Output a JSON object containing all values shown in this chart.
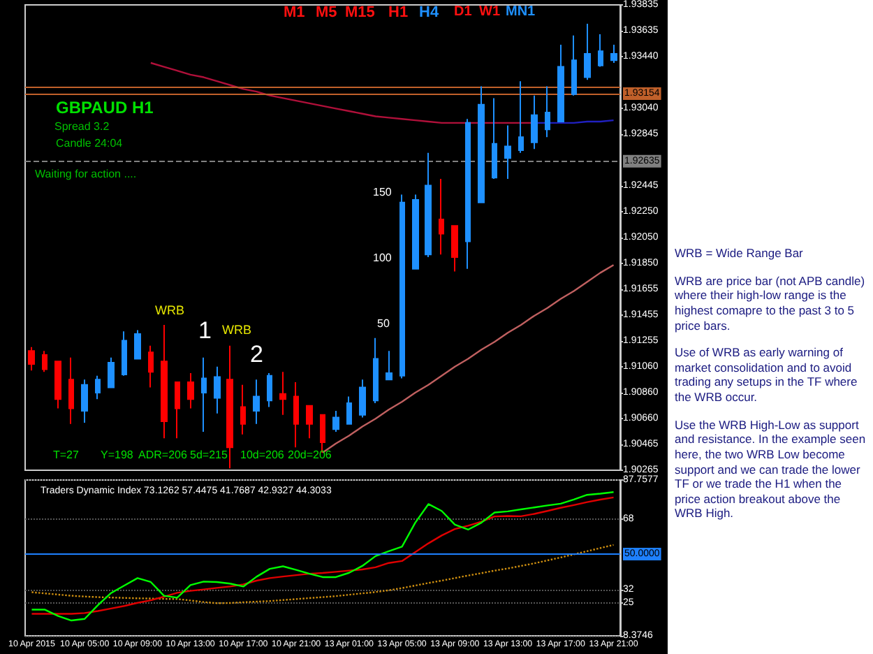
{
  "chart_data": [
    {
      "type": "candlestick",
      "categories": [
        null,
        null,
        null,
        null,
        null,
        null,
        null,
        null,
        null,
        null,
        null,
        null,
        null,
        null,
        null,
        null,
        null,
        null,
        null,
        null,
        null,
        null,
        null,
        null,
        null,
        null,
        null,
        null,
        null,
        null,
        null,
        null,
        null,
        null,
        null,
        null,
        null,
        null,
        null,
        null,
        null,
        null,
        null,
        null,
        null
      ],
      "ohlc": [
        [
          1.9118,
          1.9121,
          1.9103,
          1.9108
        ],
        [
          1.9115,
          1.9118,
          1.9102,
          1.9104
        ],
        [
          1.911,
          1.911,
          1.9074,
          1.9081
        ],
        [
          1.9096,
          1.9113,
          1.9062,
          1.9074
        ],
        [
          1.9072,
          1.9096,
          1.9063,
          1.9092
        ],
        [
          1.9086,
          1.9099,
          1.9081,
          1.9096
        ],
        [
          1.909,
          1.9113,
          1.909,
          1.9109
        ],
        [
          1.91,
          1.9133,
          1.9099,
          1.9126
        ],
        [
          1.9112,
          1.9134,
          1.9112,
          1.9131
        ],
        [
          1.9117,
          1.9122,
          1.909,
          1.9102
        ],
        [
          1.911,
          1.9138,
          1.9051,
          1.9064
        ],
        [
          1.9094,
          1.9094,
          1.9051,
          1.9074
        ],
        [
          1.9094,
          1.9101,
          1.9074,
          1.9081
        ],
        [
          1.9086,
          1.9113,
          1.9056,
          1.9097
        ],
        [
          1.9082,
          1.9106,
          1.907,
          1.9098
        ],
        [
          1.9096,
          1.9122,
          1.9028,
          1.9044
        ],
        [
          1.9075,
          1.9092,
          1.9054,
          1.9062
        ],
        [
          1.9072,
          1.9096,
          1.9062,
          1.9083
        ],
        [
          1.908,
          1.9101,
          1.9075,
          1.9099
        ],
        [
          1.9085,
          1.9102,
          1.9069,
          1.9081
        ],
        [
          1.9083,
          1.9094,
          1.9044,
          1.9062
        ],
        [
          1.9076,
          1.9076,
          1.9051,
          1.9062
        ],
        [
          1.9069,
          1.9069,
          1.904,
          1.9048
        ],
        [
          1.9058,
          1.9072,
          1.9056,
          1.9067
        ],
        [
          1.9062,
          1.9083,
          1.9062,
          1.9078
        ],
        [
          1.9069,
          1.9096,
          1.9067,
          1.909
        ],
        [
          1.908,
          1.9128,
          1.9078,
          1.9112
        ],
        [
          1.9096,
          1.9118,
          1.9096,
          1.9101
        ],
        [
          1.9099,
          1.9238,
          1.9097,
          1.9232
        ],
        [
          1.9181,
          1.9238,
          1.9181,
          1.9234
        ],
        [
          1.9192,
          1.927,
          1.919,
          1.9245
        ],
        [
          1.9219,
          1.925,
          1.9192,
          1.9208
        ],
        [
          1.9214,
          1.9214,
          1.9179,
          1.919
        ],
        [
          1.9202,
          1.9296,
          1.9181,
          1.9293
        ],
        [
          1.9232,
          1.9321,
          1.9232,
          1.9307
        ],
        [
          1.9251,
          1.9312,
          1.925,
          1.9277
        ],
        [
          1.9266,
          1.9291,
          1.925,
          1.9275
        ],
        [
          1.9272,
          1.9325,
          1.927,
          1.9282
        ],
        [
          1.9278,
          1.9314,
          1.9273,
          1.9299
        ],
        [
          1.9288,
          1.9321,
          1.9282,
          1.9301
        ],
        [
          1.9294,
          1.9353,
          1.9294,
          1.9336
        ],
        [
          1.9315,
          1.936,
          1.9314,
          1.9341
        ],
        [
          1.9328,
          1.9369,
          1.9326,
          1.9346
        ],
        [
          1.9337,
          1.9361,
          1.9336,
          1.9348
        ],
        [
          1.9341,
          1.9353,
          1.9339,
          1.9346
        ]
      ],
      "colors": [
        "#ff0000",
        "#ff0000",
        "#ff0000",
        "#ff0000",
        "#1e90ff",
        "#1e90ff",
        "#1e90ff",
        "#1e90ff",
        "#1e90ff",
        "#ff0000",
        "#ff0000",
        "#ff0000",
        "#ff0000",
        "#1e90ff",
        "#1e90ff",
        "#ff0000",
        "#ff0000",
        "#1e90ff",
        "#1e90ff",
        "#ff0000",
        "#ff0000",
        "#ff0000",
        "#ff0000",
        "#1e90ff",
        "#1e90ff",
        "#1e90ff",
        "#1e90ff",
        "#1e90ff",
        "#1e90ff",
        "#1e90ff",
        "#1e90ff",
        "#ff0000",
        "#ff0000",
        "#1e90ff",
        "#1e90ff",
        "#1e90ff",
        "#1e90ff",
        "#1e90ff",
        "#1e90ff",
        "#1e90ff",
        "#1e90ff",
        "#1e90ff",
        "#1e90ff",
        "#1e90ff",
        "#1e90ff"
      ],
      "series": [
        {
          "type": "line",
          "color": "#b0103a",
          "values": [
            null,
            null,
            null,
            null,
            null,
            null,
            null,
            null,
            null,
            1.9339,
            1.9336,
            1.9333,
            1.933,
            1.9328,
            1.9325,
            1.9322,
            1.9319,
            1.9317,
            1.9314,
            1.9312,
            1.931,
            1.9308,
            1.9306,
            1.9304,
            1.9302,
            1.93,
            1.9298,
            1.9297,
            1.9296,
            1.9295,
            1.9294,
            1.9293,
            1.9293,
            1.9293,
            1.9293,
            1.9293,
            1.9293,
            1.9293,
            1.9293,
            null,
            null,
            null,
            null,
            null,
            null
          ]
        },
        {
          "type": "line",
          "color": "#2020c0",
          "values": [
            null,
            null,
            null,
            null,
            null,
            null,
            null,
            null,
            null,
            null,
            null,
            null,
            null,
            null,
            null,
            null,
            null,
            null,
            null,
            null,
            null,
            null,
            null,
            null,
            null,
            null,
            null,
            null,
            null,
            null,
            null,
            null,
            null,
            null,
            null,
            null,
            null,
            null,
            1.9293,
            1.9293,
            1.9293,
            1.9293,
            1.9294,
            1.9294,
            1.9295
          ]
        },
        {
          "type": "line",
          "color": "#c06060",
          "values": [
            null,
            null,
            null,
            null,
            null,
            null,
            null,
            null,
            null,
            null,
            null,
            null,
            null,
            null,
            null,
            null,
            null,
            null,
            null,
            null,
            null,
            null,
            1.904,
            1.9047,
            1.9053,
            1.906,
            1.9066,
            1.9073,
            1.9079,
            1.9086,
            1.9092,
            1.9099,
            1.9106,
            1.9112,
            1.9119,
            1.9125,
            1.9132,
            1.9138,
            1.9145,
            1.9151,
            1.9158,
            1.9164,
            1.9171,
            1.9178,
            1.9184
          ]
        }
      ],
      "ylim": [
        1.90265,
        1.93835
      ],
      "yticks": [
        1.93835,
        1.93635,
        {
          "value": 1.9344,
          "label": "1.93440"
        },
        {
          "value": 1.9304,
          "label": "1.93040"
        },
        1.92845,
        1.92445,
        {
          "value": 1.9225,
          "label": "1.92250"
        },
        {
          "value": 1.9205,
          "label": "1.92050"
        },
        {
          "value": 1.9185,
          "label": "1.91850"
        },
        1.91655,
        1.91455,
        1.91255,
        {
          "value": 1.9106,
          "label": "1.91060"
        },
        {
          "value": 1.9086,
          "label": "1.90860"
        },
        {
          "value": 1.9066,
          "label": "1.90660"
        },
        1.90465,
        1.90265
      ],
      "ref_lines": [
        {
          "axis": "y",
          "value": 1.9321,
          "color": "#c0602a"
        },
        {
          "axis": "y",
          "value": 1.93154,
          "label": "1.93154",
          "color": "#c0602a"
        },
        {
          "axis": "y",
          "value": 1.92635,
          "label": "1.92635",
          "color": "#808080",
          "line_style": "dashed"
        }
      ],
      "tick_labels": "y",
      "annotations": [
        "M1",
        "M5",
        "M15",
        "H1",
        "H4",
        "D1",
        "W1",
        "MN1",
        "GBPAUD   H1",
        "Spread  3.2",
        "Candle  24:04",
        "Waiting for action ....",
        "WRB",
        "1",
        "WRB",
        "2",
        "150",
        "100",
        "50",
        "T=27",
        "Y=198",
        "ADR=206",
        "5d=215",
        "10d=206",
        "20d=206",
        "WRB = Wide Range Bar",
        "WRB are price bar (not APB candle) where their high-low range is the highest comapre to the past 3 to 5 price bars.",
        "Use of WRB as early warning of market consolidation and to avoid trading any setups in the TF where the WRB occur.",
        "Use the WRB High-Low as support and resistance. In the example seen here, the two WRB Low become support and we can trade the lower TF or we trade the H1 when the price action breakout above the WRB High."
      ]
    },
    {
      "type": "line",
      "title": "Traders Dynamic Index 73.1262 57.4475 41.7687 42.9327 44.3033",
      "categories": [
        "10 Apr 2015",
        null,
        null,
        null,
        "10 Apr 05:00",
        null,
        null,
        null,
        "10 Apr 09:00",
        null,
        null,
        null,
        "10 Apr 13:00",
        null,
        null,
        null,
        "10 Apr 17:00",
        null,
        null,
        null,
        "10 Apr 21:00",
        null,
        null,
        null,
        "13 Apr 01:00",
        null,
        null,
        null,
        "13 Apr 05:00",
        null,
        null,
        null,
        "13 Apr 09:00",
        null,
        null,
        null,
        "13 Apr 13:00",
        null,
        null,
        null,
        "13 Apr 17:00",
        null,
        null,
        null,
        "13 Apr 21:00"
      ],
      "series": [
        {
          "color": "#d09010",
          "line_style": "dotted",
          "values": [
            30.6,
            30,
            29.4,
            28.8,
            28.4,
            28.1,
            27.9,
            27.7,
            27.5,
            27.4,
            27.2,
            27.1,
            26.4,
            25.6,
            25,
            25.1,
            25.5,
            25.8,
            26.1,
            26.6,
            27.1,
            27.6,
            28.1,
            28.6,
            29.3,
            30,
            30.7,
            31.6,
            32.7,
            34,
            35.3,
            36.5,
            37.8,
            39.1,
            40.3,
            41.6,
            42.7,
            44,
            45.3,
            46.8,
            48.3,
            49.9,
            51.5,
            53.1,
            54.7
          ]
        },
        {
          "color": "#e00000",
          "values": [
            19.6,
            19.6,
            19.6,
            19.6,
            20,
            21,
            22.3,
            23.6,
            25.2,
            26.5,
            28.3,
            30.3,
            31.3,
            32,
            32.8,
            33.5,
            34.6,
            36.5,
            37.8,
            38.6,
            39.3,
            40,
            40.4,
            41,
            41.6,
            42.2,
            43.3,
            45.5,
            46.5,
            51,
            55.5,
            59.5,
            62.8,
            64.5,
            66.5,
            69.2,
            69.4,
            69.3,
            70.5,
            72,
            73.6,
            75,
            76.5,
            77.8,
            78.9
          ]
        },
        {
          "color": "#00ff00",
          "values": [
            21.7,
            21.7,
            18.5,
            16.2,
            17,
            24,
            30.2,
            34,
            37.8,
            35.8,
            28.8,
            27.8,
            34.2,
            36,
            35.8,
            35,
            33.5,
            38.5,
            42.5,
            43.8,
            42,
            40,
            38.3,
            38.3,
            40.5,
            44,
            49,
            51.5,
            53.8,
            66,
            75.5,
            72,
            65,
            62.5,
            66,
            71.2,
            71.8,
            72.8,
            73.8,
            74.8,
            75.7,
            77.8,
            80.2,
            80.8,
            81.6
          ]
        }
      ],
      "ylim": [
        8.3746,
        87.7577
      ],
      "yticks": [
        87.7577,
        68,
        32,
        25,
        8.3746
      ],
      "grid": "y",
      "ref_lines": [
        {
          "axis": "y",
          "value": 50,
          "label": "50.0000",
          "color": "#1e80ff"
        }
      ]
    }
  ]
}
